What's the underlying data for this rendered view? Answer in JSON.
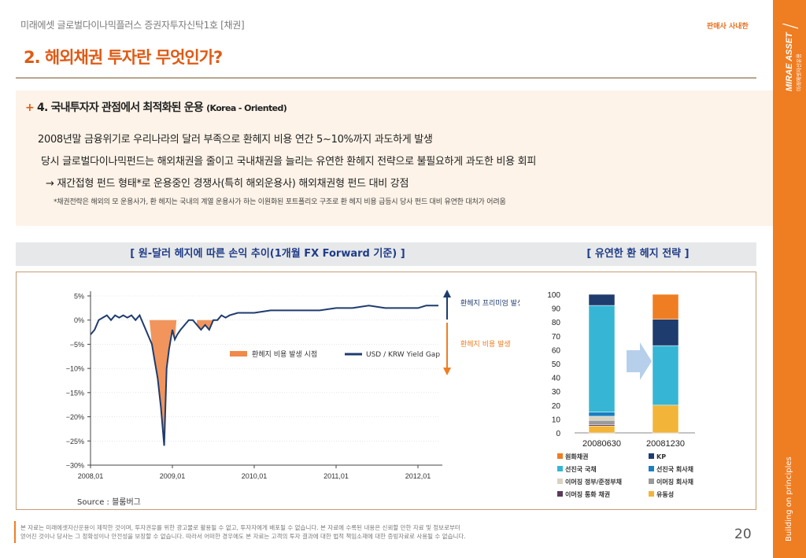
{
  "header": {
    "fund_title": "미래에셋 글로벌다이나믹플러스 증권자투자신탁1호 [채권]",
    "seller_label": "판매사 사내한",
    "page_heading": "2. 해외채권 투자란 무엇인가?"
  },
  "sidebar": {
    "brand": "MIRAE ASSET",
    "brand_sub": "미래에셋자산운용",
    "tagline": "Building on principles"
  },
  "section": {
    "plus": "+",
    "heading": "4. 국내투자자 관점에서 최적화된 운용",
    "heading_sub": "(Korea - Oriented)",
    "line1": "2008년말 금융위기로 우리나라의 달러 부족으로 환헤지 비용 연간 5~10%까지 과도하게 발생",
    "line2": "당시 글로벌다이나믹펀드는 해외채권을 줄이고 국내채권을 늘리는 유연한 환헤지 전략으로 불필요하게 과도한 비용 회피",
    "line3": "→ 재간접형 펀드 형태*로 운용중인 경쟁사(특히 해외운용사) 해외채권형 펀드 대비 강점",
    "note": "*채권전략은 해외의 모 운용사가, 환 헤지는 국내의 계열 운용사가 하는 이원화된 포트폴리오 구조로 환 헤지 비용 급등시 당사 펀드 대비 유연한 대처가 어려움"
  },
  "chart_headers": {
    "left": "[ 원-달러 헤지에 따른 손익 추이(1개월 FX Forward 기준) ]",
    "right": "[ 유연한 환 헤지 전략 ]"
  },
  "chart_data": [
    {
      "type": "area",
      "title": "",
      "yticks": [
        "5%",
        "0%",
        "−5%",
        "−10%",
        "−15%",
        "−20%",
        "−25%",
        "−30%"
      ],
      "ylim": [
        -30,
        5
      ],
      "xticks": [
        "2008,01",
        "2009,01",
        "2010,01",
        "2011,01",
        "2012,01"
      ],
      "legend": [
        "환헤지 비용 발생 시점",
        "USD / KRW Yield Gap"
      ],
      "annotations": [
        "환헤지 프리미엄 발생",
        "환헤지 비용 발생"
      ],
      "series": [
        {
          "name": "USD / KRW Yield Gap",
          "x": [
            2008.0,
            2008.05,
            2008.1,
            2008.15,
            2008.2,
            2008.25,
            2008.3,
            2008.35,
            2008.4,
            2008.45,
            2008.5,
            2008.55,
            2008.6,
            2008.65,
            2008.7,
            2008.75,
            2008.78,
            2008.82,
            2008.86,
            2008.9,
            2008.93,
            2008.96,
            2009.0,
            2009.03,
            2009.06,
            2009.1,
            2009.15,
            2009.2,
            2009.25,
            2009.3,
            2009.35,
            2009.4,
            2009.45,
            2009.5,
            2009.55,
            2009.6,
            2009.65,
            2009.7,
            2009.8,
            2009.9,
            2010.0,
            2010.2,
            2010.4,
            2010.6,
            2010.8,
            2011.0,
            2011.2,
            2011.4,
            2011.6,
            2011.8,
            2012.0,
            2012.1,
            2012.2,
            2012.25
          ],
          "y": [
            -3,
            -2,
            0,
            0.5,
            1,
            0,
            1,
            0.5,
            1,
            0.5,
            1,
            0,
            1,
            -1,
            -3,
            -5,
            -8,
            -12,
            -18,
            -26,
            -10,
            -6,
            -2,
            -4,
            -3,
            -2,
            -1,
            0,
            0,
            -1,
            -2,
            -1,
            -2,
            0,
            0,
            1,
            0.5,
            1,
            1.5,
            1.5,
            1.5,
            2,
            2,
            2,
            2,
            2.5,
            2.5,
            3,
            2.5,
            2.5,
            2.5,
            3,
            3,
            3
          ]
        }
      ],
      "shaded_periods": [
        [
          2008.72,
          2009.05
        ],
        [
          2009.3,
          2009.6
        ]
      ]
    },
    {
      "type": "bar",
      "stacked": true,
      "categories": [
        "20080630",
        "20081230"
      ],
      "ylim": [
        0,
        100
      ],
      "yticks": [
        "100",
        "90",
        "80",
        "70",
        "60",
        "50",
        "40",
        "30",
        "20",
        "10",
        "0"
      ],
      "series": [
        {
          "name": "원화채권",
          "color": "#ef7d22",
          "values": [
            0,
            18
          ]
        },
        {
          "name": "KP",
          "color": "#1f3c6e",
          "values": [
            8,
            19
          ]
        },
        {
          "name": "선진국 국채",
          "color": "#36b6d4",
          "values": [
            77,
            43
          ]
        },
        {
          "name": "선진국 회사채",
          "color": "#1a7fc1",
          "values": [
            3,
            0
          ]
        },
        {
          "name": "이머징 정부/준정부채",
          "color": "#d9d2c0",
          "values": [
            3,
            0
          ]
        },
        {
          "name": "이머징 회사채",
          "color": "#9a9a9a",
          "values": [
            3,
            0
          ]
        },
        {
          "name": "이머징 통화 채권",
          "color": "#5a3a5a",
          "values": [
            1,
            0
          ]
        },
        {
          "name": "유동성",
          "color": "#f2b53a",
          "values": [
            5,
            20
          ]
        }
      ]
    }
  ],
  "source": "Source : 블룸버그",
  "footer": {
    "disclaimer1": "본 자료는 미래에셋자산운용이 제작한 것이며, 투자권유를 위한 광고물로 활용될 수 없고, 투자자에게 배포될 수 없습니다. 본 자료에 수록된 내용은 신뢰할 만한 자료 및 정보로부터",
    "disclaimer2": "얻어진 것이나 당사는 그 정확성이나 안전성을 보장할 수 없습니다. 따라서 어떠한 경우에도 본 자료는 고객의 투자 결과에 대한 법적 책임소재에 대한 증빙자료로 사용될 수 없습니다.",
    "page_number": "20"
  }
}
